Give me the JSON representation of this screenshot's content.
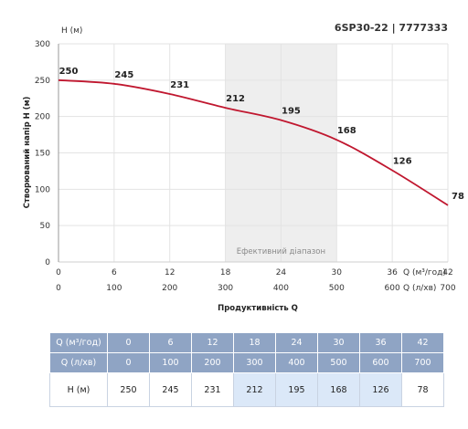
{
  "chart_data": {
    "type": "line",
    "title": "6SP30-22 | 7777333",
    "ylabel": "Створюваний напір H (м)",
    "y_unit_label": "H (м)",
    "xlabel": "Продуктивність Q",
    "x_unit_label_top": "Q (м³/год)",
    "x_unit_label_bottom": "Q (л/хв)",
    "effective_range_label": "Ефективний діапазон",
    "effective_range_q_m3h": [
      18,
      30
    ],
    "x_m3h": [
      0,
      6,
      12,
      18,
      24,
      30,
      36,
      42
    ],
    "x_lmin": [
      0,
      100,
      200,
      300,
      400,
      500,
      600,
      700
    ],
    "y_ticks": [
      0,
      50,
      100,
      150,
      200,
      250,
      300
    ],
    "ylim": [
      0,
      300
    ],
    "xlim": [
      0,
      42
    ],
    "series": [
      {
        "values": [
          250,
          245,
          231,
          212,
          195,
          168,
          126,
          78
        ]
      }
    ],
    "line_color": "#c0172f",
    "grid": true
  },
  "table": {
    "row_labels": [
      "Q (м³/год)",
      "Q (л/хв)",
      "H (м)"
    ],
    "q_m3h": [
      "0",
      "6",
      "12",
      "18",
      "24",
      "30",
      "36",
      "42"
    ],
    "q_lmin": [
      "0",
      "100",
      "200",
      "300",
      "400",
      "500",
      "600",
      "700"
    ],
    "h_m": [
      "250",
      "245",
      "231",
      "212",
      "195",
      "168",
      "126",
      "78"
    ],
    "header_color": "#8fa4c4",
    "highlight_color": "#dbe8f8"
  }
}
